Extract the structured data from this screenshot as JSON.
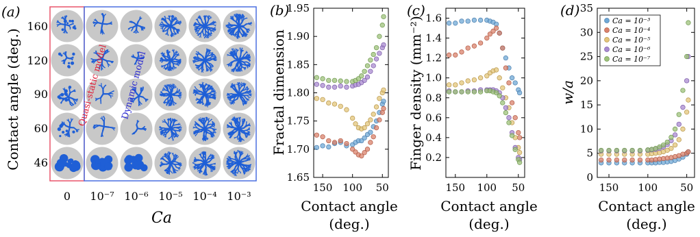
{
  "panel_a": {
    "label": "(a)",
    "ylabel": "Contact angle (deg.)",
    "xlabel": "Ca",
    "row_labels": [
      "160",
      "120",
      "90",
      "60",
      "46"
    ],
    "col_labels": [
      "0",
      "10⁻⁷",
      "10⁻⁶",
      "10⁻⁵",
      "10⁻⁴",
      "10⁻³"
    ],
    "quasi_label": "Quasi-static model",
    "dynamic_label": "Dynamic model",
    "colors": {
      "disc": "#c8c8c8",
      "pattern": "#1f5fd6",
      "quasi_box": "#e8546a",
      "dynamic_box": "#4a6fe0"
    }
  },
  "chart_data": [
    {
      "type": "scatter",
      "panel": "(b)",
      "xlabel": "Contact angle",
      "xlabel_unit": "(deg.)",
      "ylabel": "Fractal dimension",
      "xlim": [
        165,
        40
      ],
      "ylim": [
        1.65,
        1.95
      ],
      "xticks": [
        150,
        100,
        50
      ],
      "yticks": [
        1.65,
        1.7,
        1.75,
        1.8,
        1.85,
        1.9,
        1.95
      ],
      "ytick_labels": [
        "1.65",
        "1.70",
        "1.75",
        "1.80",
        "1.85",
        "1.90",
        "1.95"
      ],
      "x": [
        160,
        150,
        140,
        130,
        120,
        110,
        100,
        95,
        90,
        85,
        80,
        75,
        70,
        65,
        60,
        55,
        50,
        48
      ],
      "series": [
        {
          "values": [
            1.703,
            1.706,
            1.704,
            1.71,
            1.712,
            1.706,
            1.708,
            1.712,
            1.715,
            1.715,
            1.72,
            1.726,
            1.73,
            1.74,
            1.75,
            1.765,
            1.78,
            1.785
          ]
        },
        {
          "values": [
            1.725,
            1.722,
            1.715,
            1.712,
            1.715,
            1.71,
            1.7,
            1.695,
            1.69,
            1.688,
            1.694,
            1.7,
            1.712,
            1.722,
            1.738,
            1.752,
            1.765,
            1.772
          ]
        },
        {
          "values": [
            1.79,
            1.788,
            1.782,
            1.78,
            1.776,
            1.77,
            1.755,
            1.745,
            1.738,
            1.736,
            1.738,
            1.745,
            1.752,
            1.762,
            1.775,
            1.79,
            1.8,
            1.805
          ]
        },
        {
          "values": [
            1.815,
            1.813,
            1.81,
            1.81,
            1.812,
            1.81,
            1.812,
            1.814,
            1.815,
            1.818,
            1.822,
            1.828,
            1.838,
            1.848,
            1.86,
            1.87,
            1.88,
            1.885
          ]
        },
        {
          "values": [
            1.827,
            1.825,
            1.822,
            1.822,
            1.821,
            1.82,
            1.82,
            1.822,
            1.825,
            1.83,
            1.838,
            1.848,
            1.858,
            1.868,
            1.88,
            1.9,
            1.92,
            1.935
          ]
        }
      ]
    },
    {
      "type": "scatter",
      "panel": "(c)",
      "xlabel": "Contact angle",
      "xlabel_unit": "(deg.)",
      "ylabel": "Finger density (mm⁻²)",
      "xlim": [
        165,
        40
      ],
      "ylim": [
        0,
        1.7
      ],
      "xticks": [
        150,
        100,
        50
      ],
      "yticks": [
        0.2,
        0.4,
        0.6,
        0.8,
        1.0,
        1.2,
        1.4,
        1.6
      ],
      "ytick_labels": [
        "0.2",
        "0.4",
        "0.6",
        "0.8",
        "1.0",
        "1.2",
        "1.4",
        "1.6"
      ],
      "x": [
        160,
        150,
        140,
        130,
        120,
        110,
        100,
        95,
        90,
        85,
        80,
        75,
        70,
        65,
        60,
        55,
        50,
        48
      ],
      "series": [
        {
          "values": [
            1.55,
            1.55,
            1.57,
            1.57,
            1.58,
            1.58,
            1.58,
            1.57,
            1.56,
            1.54,
            1.45,
            1.3,
            1.2,
            1.1,
            1.0,
            0.95,
            0.88,
            0.85
          ]
        },
        {
          "values": [
            1.23,
            1.23,
            1.26,
            1.3,
            1.32,
            1.35,
            1.4,
            1.44,
            1.47,
            1.5,
            1.45,
            1.3,
            1.1,
            0.95,
            0.75,
            0.6,
            0.45,
            0.4
          ]
        },
        {
          "values": [
            0.93,
            0.93,
            0.95,
            0.97,
            0.98,
            1.0,
            1.02,
            1.05,
            1.07,
            1.08,
            1.0,
            0.9,
            0.8,
            0.7,
            0.55,
            0.4,
            0.3,
            0.25
          ]
        },
        {
          "values": [
            0.87,
            0.86,
            0.86,
            0.87,
            0.87,
            0.88,
            0.88,
            0.88,
            0.88,
            0.87,
            0.85,
            0.8,
            0.7,
            0.6,
            0.45,
            0.3,
            0.2,
            0.18
          ]
        },
        {
          "values": [
            0.86,
            0.86,
            0.86,
            0.86,
            0.86,
            0.86,
            0.87,
            0.87,
            0.86,
            0.85,
            0.82,
            0.75,
            0.65,
            0.55,
            0.42,
            0.28,
            0.18,
            0.15
          ]
        }
      ]
    },
    {
      "type": "scatter",
      "panel": "(d)",
      "xlabel": "Contact angle",
      "xlabel_unit": "(deg.)",
      "ylabel": "w/a",
      "xlim": [
        165,
        40
      ],
      "ylim": [
        0,
        35
      ],
      "xticks": [
        150,
        100,
        50
      ],
      "yticks": [
        0,
        5,
        10,
        15,
        20,
        25,
        30,
        35
      ],
      "ytick_labels": [
        "0",
        "5",
        "10",
        "15",
        "20",
        "25",
        "30",
        "35"
      ],
      "legend_position": "top-right",
      "x": [
        160,
        150,
        140,
        130,
        120,
        110,
        100,
        95,
        90,
        85,
        80,
        75,
        70,
        65,
        60,
        55,
        50,
        48
      ],
      "series": [
        {
          "name": "Ca = 10⁻³",
          "values": [
            3.0,
            3.0,
            3.0,
            3.0,
            3.0,
            3.0,
            3.0,
            3.0,
            3.0,
            3.1,
            3.1,
            3.2,
            3.3,
            3.5,
            3.8,
            4.2,
            4.8,
            5.3
          ]
        },
        {
          "name": "Ca = 10⁻⁴",
          "values": [
            3.6,
            3.6,
            3.6,
            3.6,
            3.6,
            3.6,
            3.6,
            3.6,
            3.7,
            3.8,
            3.9,
            4.0,
            4.1,
            4.3,
            4.5,
            4.8,
            5.0,
            5.3
          ]
        },
        {
          "name": "Ca = 10⁻⁵",
          "values": [
            4.8,
            4.8,
            4.8,
            4.8,
            4.8,
            4.8,
            4.8,
            4.9,
            5.0,
            5.1,
            5.3,
            5.6,
            6.0,
            6.7,
            7.8,
            10.0,
            13.5,
            16.0
          ]
        },
        {
          "name": "Ca = 10⁻⁶",
          "values": [
            5.5,
            5.5,
            5.5,
            5.5,
            5.5,
            5.5,
            5.6,
            5.7,
            5.8,
            6.0,
            6.3,
            6.8,
            7.6,
            8.8,
            11.0,
            14.5,
            20.0,
            25.0
          ]
        },
        {
          "name": "Ca = 10⁻⁷",
          "values": [
            5.6,
            5.6,
            5.6,
            5.6,
            5.6,
            5.6,
            5.7,
            5.8,
            6.0,
            6.3,
            6.7,
            7.3,
            8.3,
            10.0,
            13.0,
            18.0,
            25.0,
            32.0
          ]
        }
      ]
    }
  ],
  "series_colors": [
    "#6fa8d6",
    "#d9826b",
    "#e3c57a",
    "#a98bd0",
    "#9ec27a"
  ],
  "series_edge_colors": [
    "#4c7fae",
    "#b25a44",
    "#b8964a",
    "#7b5ca8",
    "#6f9850"
  ]
}
